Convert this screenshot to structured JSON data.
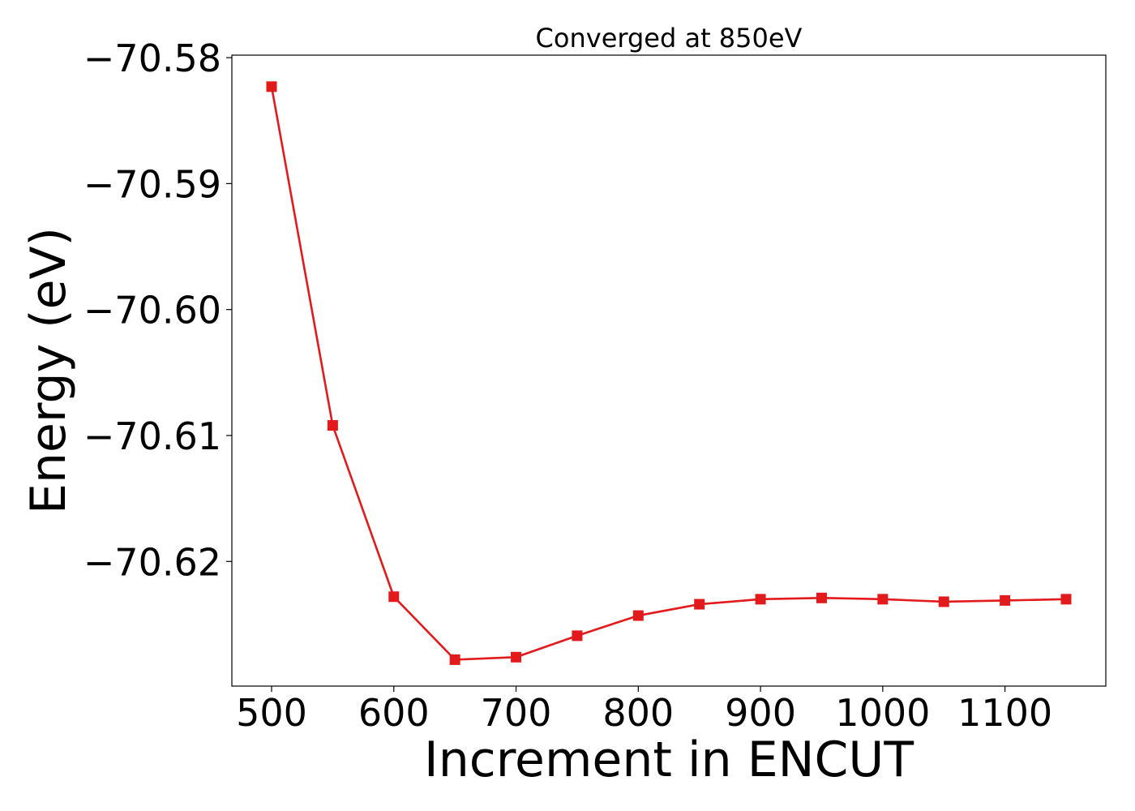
{
  "chart_data": {
    "type": "line",
    "title": "Converged at 850eV",
    "xlabel": "Increment in ENCUT",
    "ylabel": "Energy (eV)",
    "x": [
      500,
      550,
      600,
      650,
      700,
      750,
      800,
      850,
      900,
      950,
      1000,
      1050,
      1100,
      1150
    ],
    "series": [
      {
        "values": [
          -70.5823,
          -70.6092,
          -70.6228,
          -70.6278,
          -70.6276,
          -70.6259,
          -70.6243,
          -70.6234,
          -70.623,
          -70.6229,
          -70.623,
          -70.6232,
          -70.6231,
          -70.623
        ],
        "color": "#e31a1c",
        "marker": "square"
      }
    ],
    "xlim": [
      467.5,
      1182.5
    ],
    "ylim": [
      -70.6299,
      -70.5798
    ],
    "x_ticks": [
      500,
      600,
      700,
      800,
      900,
      1000,
      1100
    ],
    "x_tick_labels": [
      "500",
      "600",
      "700",
      "800",
      "900",
      "1000",
      "1100"
    ],
    "y_ticks": [
      -70.58,
      -70.59,
      -70.6,
      -70.61,
      -70.62
    ],
    "y_tick_labels": [
      "−70.58",
      "−70.59",
      "−70.60",
      "−70.61",
      "−70.62"
    ],
    "grid": false,
    "legend": "none"
  }
}
